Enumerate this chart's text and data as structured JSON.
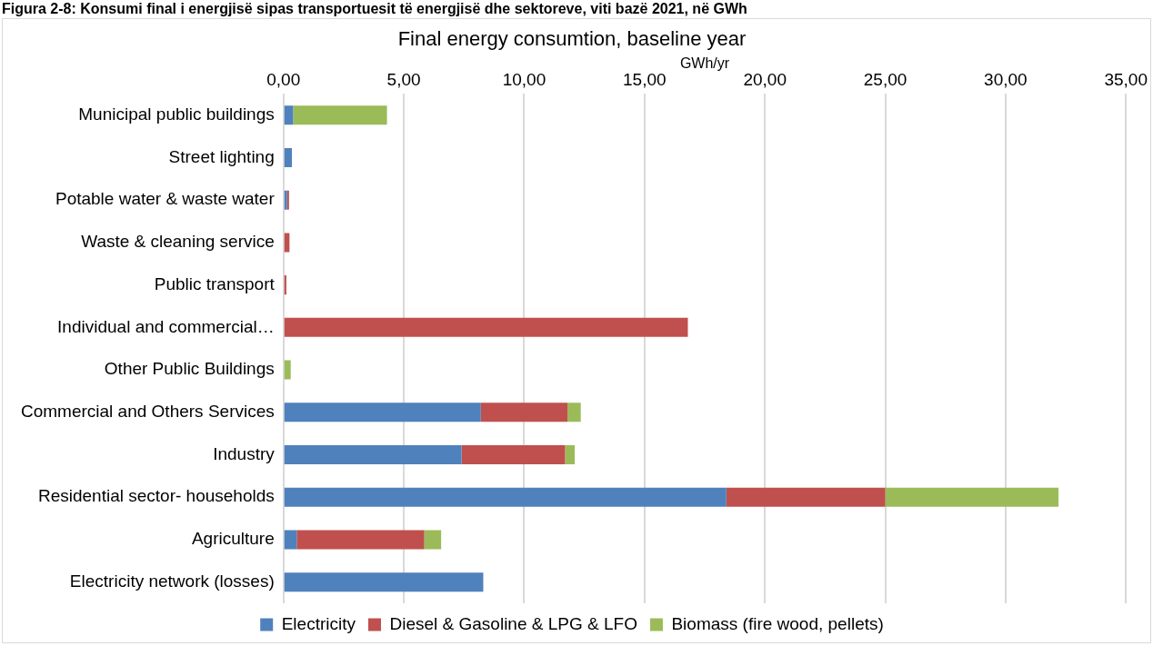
{
  "chart_data": {
    "type": "bar",
    "orientation": "horizontal",
    "stacked": true,
    "title": "Final energy consumtion, baseline year",
    "xlabel": "GWh/yr",
    "annotations": [
      "Figura 2-8: Konsumi final i energjisë sipas transportuesit të energjisë dhe sektoreve, viti bazë 2021, në GWh"
    ],
    "categories": [
      "Municipal public buildings",
      "Street lighting",
      "Potable water & waste water",
      "Waste & cleaning service",
      "Public transport",
      "Individual and commercial…",
      "Other Public Buildings",
      "Commercial and Others Services",
      "Industry",
      "Residential sector- households",
      "Agriculture",
      "Electricity network (losses)"
    ],
    "series": [
      {
        "name": "Electricity",
        "color": "#4f81bd",
        "values": [
          0.4,
          0.35,
          0.15,
          null,
          null,
          null,
          null,
          8.2,
          7.4,
          18.4,
          0.55,
          8.3
        ]
      },
      {
        "name": "Diesel & Gasoline & LPG & LFO",
        "color": "#c0504d",
        "values": [
          null,
          null,
          0.08,
          0.25,
          0.12,
          16.8,
          null,
          3.6,
          4.3,
          6.6,
          5.3,
          null
        ]
      },
      {
        "name": "Biomass (fire wood, pellets)",
        "color": "#9bbb59",
        "values": [
          3.9,
          null,
          null,
          null,
          null,
          null,
          0.3,
          0.55,
          0.4,
          7.2,
          0.7,
          null
        ]
      }
    ],
    "xlim": [
      0,
      35
    ],
    "xticks": [
      {
        "value": 0,
        "label": "0,00"
      },
      {
        "value": 5,
        "label": "5,00"
      },
      {
        "value": 10,
        "label": "10,00"
      },
      {
        "value": 15,
        "label": "15,00"
      },
      {
        "value": 20,
        "label": "20,00"
      },
      {
        "value": 25,
        "label": "25,00"
      },
      {
        "value": 30,
        "label": "30,00"
      },
      {
        "value": 35,
        "label": "35,00"
      }
    ],
    "grid": "x",
    "legend": "bottom"
  }
}
